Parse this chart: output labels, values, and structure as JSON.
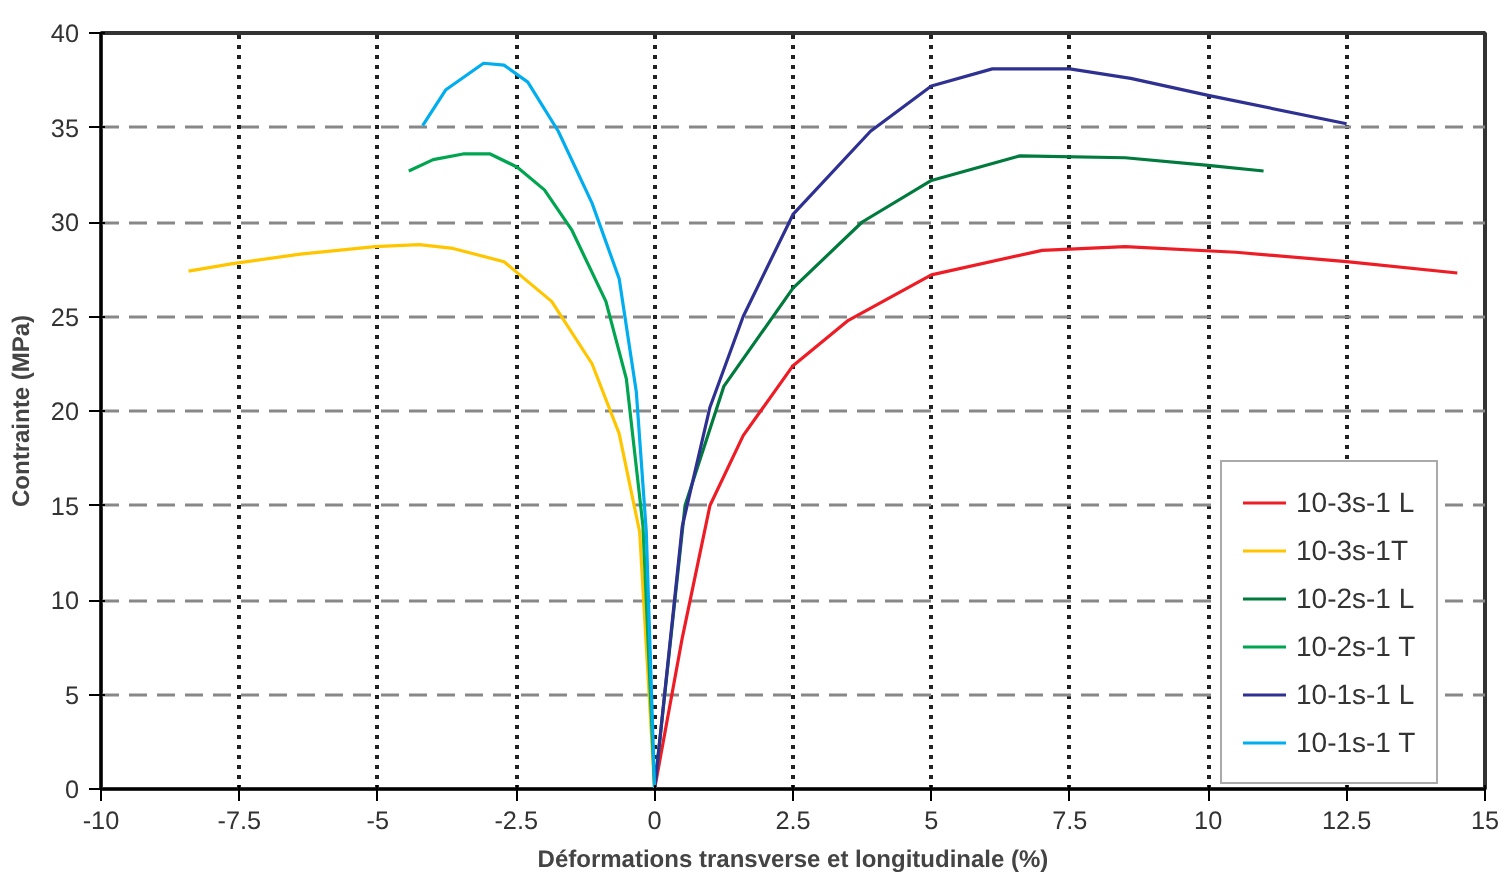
{
  "chart_data": {
    "type": "line",
    "xlabel": "Déformations transverse et longitudinale (%)",
    "ylabel": "Contrainte (MPa)",
    "xlim": [
      -10,
      15
    ],
    "xticks": [
      -10,
      -7.5,
      -5,
      -2.5,
      0,
      2.5,
      5,
      7.5,
      10,
      12.5,
      15
    ],
    "ylim": [
      0,
      40
    ],
    "yticks": [
      0,
      5,
      10,
      15,
      20,
      25,
      30,
      35,
      40
    ],
    "grid": true,
    "legend": "right",
    "line_style": "solid",
    "marker": "none",
    "series": [
      {
        "name": "10-3s-1 L",
        "color": "#ee1c25",
        "x": [
          0,
          0.5,
          1.0,
          1.6,
          2.5,
          3.5,
          5,
          7,
          8.5,
          10.5,
          12.5,
          14.5
        ],
        "values": [
          0,
          8,
          15,
          18.7,
          22.4,
          24.8,
          27.2,
          28.5,
          28.7,
          28.4,
          27.9,
          27.3
        ]
      },
      {
        "name": "10-3s-1T",
        "color": "#ffc600",
        "x": [
          -8.42,
          -7.62,
          -6.4,
          -5.05,
          -4.25,
          -3.64,
          -2.72,
          -1.86,
          -1.13,
          -0.64,
          -0.27,
          0
        ],
        "values": [
          27.4,
          27.8,
          28.3,
          28.7,
          28.8,
          28.6,
          27.9,
          25.8,
          22.5,
          18.8,
          13.6,
          0
        ]
      },
      {
        "name": "10-2s-1 L",
        "color": "#007a3d",
        "x": [
          0,
          0.55,
          1.25,
          2.5,
          3.75,
          5,
          6.6,
          8.5,
          10,
          11
        ],
        "values": [
          0,
          15,
          21.3,
          26.5,
          30,
          32.2,
          33.5,
          33.4,
          33,
          32.7
        ]
      },
      {
        "name": "10-2s-1 T",
        "color": "#00a550",
        "x": [
          -4.44,
          -4.0,
          -3.46,
          -2.97,
          -2.48,
          -1.99,
          -1.5,
          -0.88,
          -0.51,
          -0.21,
          0
        ],
        "values": [
          32.7,
          33.3,
          33.6,
          33.6,
          32.9,
          31.7,
          29.6,
          25.8,
          21.7,
          13.9,
          0
        ]
      },
      {
        "name": "10-1s-1 L",
        "color": "#2e3192",
        "x": [
          0,
          0.5,
          1.0,
          1.6,
          2.5,
          3.9,
          5,
          6.1,
          7.5,
          8.6,
          10,
          12.5
        ],
        "values": [
          0,
          13.9,
          20.2,
          25,
          30.4,
          34.8,
          37.2,
          38.1,
          38.1,
          37.6,
          36.7,
          35.2
        ]
      },
      {
        "name": "10-1s-1 T",
        "color": "#00aeef",
        "x": [
          -4.19,
          -3.77,
          -3.09,
          -2.72,
          -2.29,
          -1.74,
          -1.13,
          -0.64,
          -0.33,
          -0.15,
          0
        ],
        "values": [
          35.1,
          37,
          38.4,
          38.3,
          37.4,
          34.8,
          31,
          27,
          21,
          13.6,
          0
        ]
      }
    ]
  }
}
